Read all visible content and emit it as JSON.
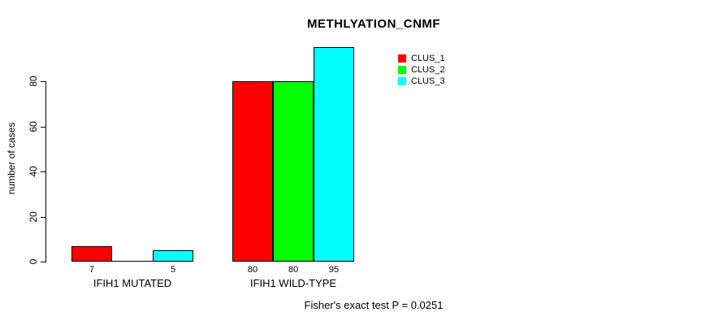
{
  "chart_data": {
    "type": "bar",
    "title": "METHLYATION_CNMF",
    "xlabel": "",
    "ylabel": "number of cases",
    "ylim": [
      0,
      95
    ],
    "yticks": [
      0,
      20,
      40,
      60,
      80
    ],
    "grid": false,
    "categories": [
      "IFIH1 MUTATED",
      "IFIH1 WILD-TYPE"
    ],
    "series": [
      {
        "name": "CLUS_1",
        "color": "#ff0000",
        "values": [
          7,
          80
        ]
      },
      {
        "name": "CLUS_2",
        "color": "#00ff00",
        "values": [
          0,
          80
        ]
      },
      {
        "name": "CLUS_3",
        "color": "#00ffff",
        "values": [
          5,
          95
        ]
      }
    ],
    "bar_labels": [
      [
        "7",
        "",
        "5"
      ],
      [
        "80",
        "80",
        "95"
      ]
    ],
    "legend": {
      "position": "top-right",
      "entries": [
        "CLUS_1",
        "CLUS_2",
        "CLUS_3"
      ]
    },
    "annotation": "Fisher's exact test P = 0.0251",
    "bar_border_color": "#000000",
    "axis_color": "#000000"
  }
}
